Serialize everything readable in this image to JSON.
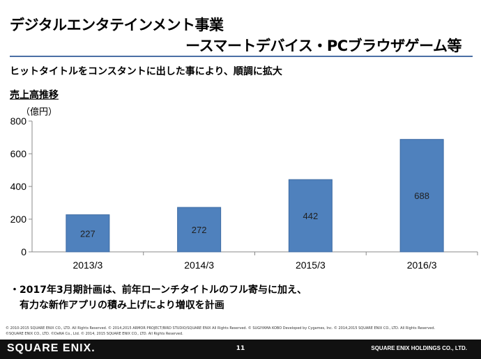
{
  "slide": {
    "title_line1": "デジタルエンタテインメント事業",
    "title_line2": "ースマートデバイス・PCブラウザゲーム等",
    "subtitle": "ヒットタイトルをコンスタントに出した事により、順調に拡大",
    "section_heading": "売上高推移",
    "unit_label": "（億円）",
    "note_line1": "・2017年3月期計画は、前年ローンチタイトルのフル寄与に加え、",
    "note_line2": "有力な新作アプリの積み上げにより増収を計画",
    "copyright_line1": "© 2010-2015 SQUARE ENIX CO., LTD. All Rights Reserved.  © 2014,2015 ARMOR PROJECT/BIRD STUDIO/SQUARE ENIX All Rights Reserved.  © SUGIYAMA KOBO  Developed by Cygames, Inc.  © 2014,2015 SQUARE ENIX CO., LTD. All Rights Reserved.",
    "copyright_line2": "©SQUARE ENIX CO., LTD. ©DeNA Co., Ltd.  © 2014, 2015 SQUARE ENIX CO., LTD. All Rights Reserved."
  },
  "footer": {
    "logo": "SQUARE ENIX.",
    "page_number": "11",
    "company": "SQUARE ENIX HOLDINGS CO., LTD."
  },
  "colors": {
    "bar": "#4f81bd",
    "bar_edge": "#3e6ba3",
    "title_rule": "#4a6fa5",
    "footer_bg": "#111111"
  },
  "chart_data": {
    "type": "bar",
    "categories": [
      "2013/3",
      "2014/3",
      "2015/3",
      "2016/3"
    ],
    "values": [
      227,
      272,
      442,
      688
    ],
    "data_labels": [
      "227",
      "272",
      "442",
      "688"
    ],
    "y_ticks": [
      0,
      200,
      400,
      600,
      800
    ],
    "ylim": [
      0,
      800
    ],
    "ylabel": "（億円）",
    "grid": false,
    "legend": "none"
  }
}
